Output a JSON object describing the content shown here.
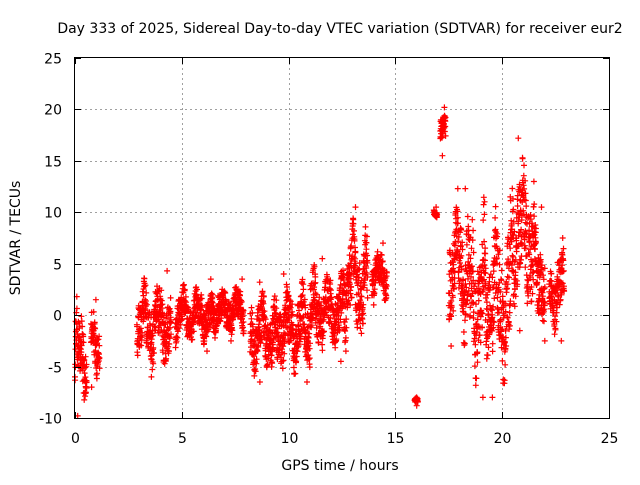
{
  "chart_data": {
    "type": "scatter",
    "title": "Day 333 of 2025, Sidereal Day-to-day VTEC variation (SDTVAR) for receiver eur2",
    "xlabel": "GPS time / hours",
    "ylabel": "SDTVAR / TECUs",
    "xlim": [
      0,
      25
    ],
    "ylim": [
      -10,
      25
    ],
    "xticks": [
      0,
      5,
      10,
      15,
      20,
      25
    ],
    "yticks": [
      -10,
      -5,
      0,
      5,
      10,
      15,
      20,
      25
    ],
    "grid": true,
    "marker": "+",
    "marker_color": "#ff0000",
    "series": [
      {
        "name": "SDTVAR",
        "segments": [
          {
            "x_start": 0.0,
            "x_end": 0.55,
            "y_min": -9.8,
            "y_max": 1.8
          },
          {
            "x_start": 0.75,
            "x_end": 1.15,
            "y_min": -7.0,
            "y_max": 1.5
          },
          {
            "x_start": 2.9,
            "x_end": 4.5,
            "y_min": -6.0,
            "y_max": 4.3
          },
          {
            "x_start": 4.7,
            "x_end": 6.4,
            "y_min": -3.5,
            "y_max": 3.5
          },
          {
            "x_start": 6.4,
            "x_end": 7.9,
            "y_min": -2.5,
            "y_max": 3.5
          },
          {
            "x_start": 8.2,
            "x_end": 9.4,
            "y_min": -6.5,
            "y_max": 3.2
          },
          {
            "x_start": 9.4,
            "x_end": 11.0,
            "y_min": -6.5,
            "y_max": 4.0
          },
          {
            "x_start": 11.0,
            "x_end": 12.6,
            "y_min": -4.5,
            "y_max": 5.5
          },
          {
            "x_start": 12.6,
            "x_end": 13.7,
            "y_min": -3.5,
            "y_max": 10.5
          },
          {
            "x_start": 13.9,
            "x_end": 14.6,
            "y_min": 1.0,
            "y_max": 7.0
          },
          {
            "x_start": 15.9,
            "x_end": 16.05,
            "y_min": -8.8,
            "y_max": -8.0
          },
          {
            "x_start": 16.8,
            "x_end": 16.95,
            "y_min": 9.5,
            "y_max": 10.5
          },
          {
            "x_start": 17.1,
            "x_end": 17.35,
            "y_min": 15.5,
            "y_max": 20.2
          },
          {
            "x_start": 17.5,
            "x_end": 18.2,
            "y_min": -3.0,
            "y_max": 12.3
          },
          {
            "x_start": 18.2,
            "x_end": 19.2,
            "y_min": -8.0,
            "y_max": 12.3
          },
          {
            "x_start": 19.2,
            "x_end": 20.4,
            "y_min": -8.0,
            "y_max": 11.5
          },
          {
            "x_start": 20.4,
            "x_end": 21.5,
            "y_min": -1.5,
            "y_max": 17.2
          },
          {
            "x_start": 21.5,
            "x_end": 22.0,
            "y_min": -2.5,
            "y_max": 10.5
          },
          {
            "x_start": 22.2,
            "x_end": 22.9,
            "y_min": -2.5,
            "y_max": 7.5
          }
        ]
      }
    ]
  }
}
